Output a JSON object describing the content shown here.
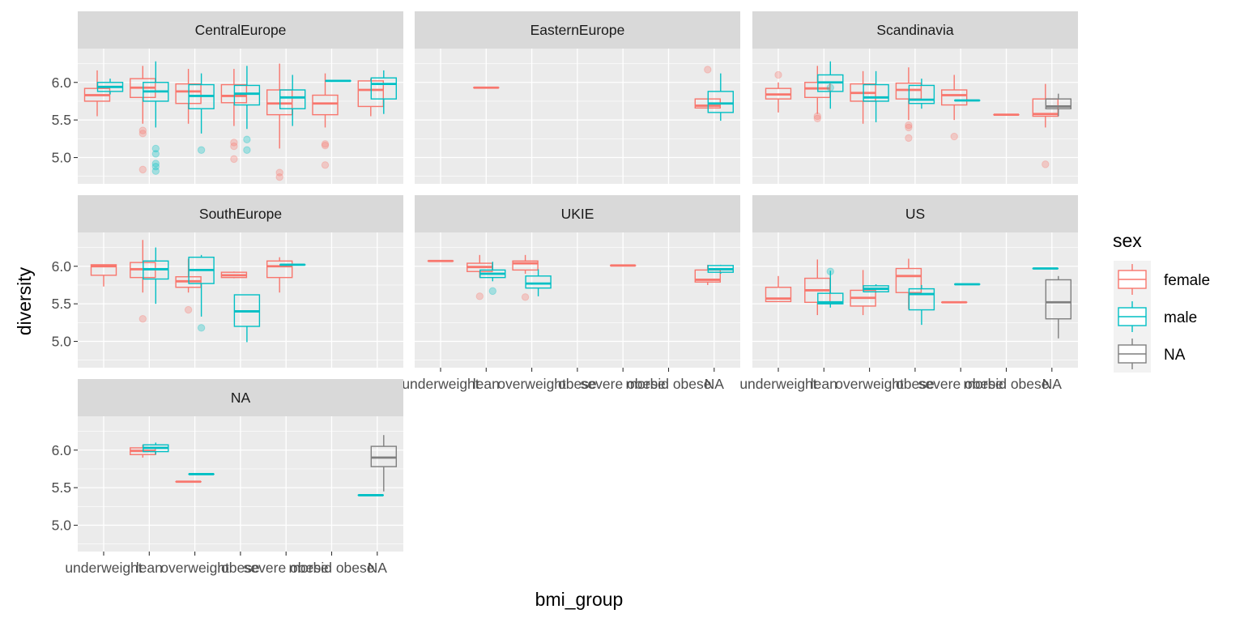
{
  "chart_data": {
    "type": "boxplot",
    "facet_by": "region",
    "xlabel": "bmi_group",
    "ylabel": "diversity",
    "categories": [
      "underweight",
      "lean",
      "overweight",
      "obese",
      "severe obese",
      "morbid obese",
      "NA"
    ],
    "y_ticks": [
      5.0,
      5.5,
      6.0
    ],
    "ylim": [
      4.65,
      6.45
    ],
    "grid": true,
    "legend": {
      "title": "sex",
      "position": "right",
      "entries": [
        {
          "name": "female",
          "color": "#F8766D"
        },
        {
          "name": "male",
          "color": "#00BFC4"
        },
        {
          "name": "NA",
          "color": "#7F7F7F"
        }
      ]
    },
    "facets": [
      {
        "name": "CentralEurope",
        "boxes": [
          {
            "cat": 0,
            "sex": "female",
            "lo": 5.55,
            "q1": 5.75,
            "med": 5.83,
            "q3": 5.92,
            "hi": 6.16,
            "out": []
          },
          {
            "cat": 0,
            "sex": "male",
            "lo": 5.84,
            "q1": 5.88,
            "med": 5.94,
            "q3": 6.0,
            "hi": 6.05,
            "out": []
          },
          {
            "cat": 1,
            "sex": "female",
            "lo": 5.45,
            "q1": 5.8,
            "med": 5.93,
            "q3": 6.05,
            "hi": 6.22,
            "out": [
              5.36,
              5.32,
              4.84
            ]
          },
          {
            "cat": 1,
            "sex": "male",
            "lo": 5.4,
            "q1": 5.75,
            "med": 5.88,
            "q3": 6.0,
            "hi": 6.28,
            "out": [
              5.12,
              5.05,
              4.92,
              4.88,
              4.82
            ]
          },
          {
            "cat": 2,
            "sex": "female",
            "lo": 5.45,
            "q1": 5.72,
            "med": 5.88,
            "q3": 5.98,
            "hi": 6.18,
            "out": []
          },
          {
            "cat": 2,
            "sex": "male",
            "lo": 5.32,
            "q1": 5.65,
            "med": 5.82,
            "q3": 5.97,
            "hi": 6.12,
            "out": [
              5.1
            ]
          },
          {
            "cat": 3,
            "sex": "female",
            "lo": 5.42,
            "q1": 5.73,
            "med": 5.82,
            "q3": 5.97,
            "hi": 6.18,
            "out": [
              5.2,
              5.15,
              4.98
            ]
          },
          {
            "cat": 3,
            "sex": "male",
            "lo": 5.38,
            "q1": 5.7,
            "med": 5.85,
            "q3": 5.96,
            "hi": 6.22,
            "out": [
              5.24,
              5.1
            ]
          },
          {
            "cat": 4,
            "sex": "female",
            "lo": 5.12,
            "q1": 5.57,
            "med": 5.72,
            "q3": 5.9,
            "hi": 6.25,
            "out": [
              4.8,
              4.74
            ]
          },
          {
            "cat": 4,
            "sex": "male",
            "lo": 5.42,
            "q1": 5.65,
            "med": 5.8,
            "q3": 5.9,
            "hi": 6.1,
            "out": []
          },
          {
            "cat": 5,
            "sex": "female",
            "lo": 5.4,
            "q1": 5.57,
            "med": 5.72,
            "q3": 5.83,
            "hi": 6.12,
            "out": [
              5.18,
              5.16,
              4.9
            ]
          },
          {
            "cat": 5,
            "sex": "male",
            "lo": 6.02,
            "q1": 6.02,
            "med": 6.02,
            "q3": 6.02,
            "hi": 6.02,
            "out": []
          },
          {
            "cat": 6,
            "sex": "female",
            "lo": 5.55,
            "q1": 5.68,
            "med": 5.9,
            "q3": 6.02,
            "hi": 6.05,
            "out": []
          },
          {
            "cat": 6,
            "sex": "male",
            "lo": 5.58,
            "q1": 5.78,
            "med": 5.98,
            "q3": 6.06,
            "hi": 6.16,
            "out": []
          }
        ]
      },
      {
        "name": "EasternEurope",
        "boxes": [
          {
            "cat": 1,
            "sex": "female",
            "lo": 5.93,
            "q1": 5.93,
            "med": 5.93,
            "q3": 5.93,
            "hi": 5.93,
            "out": []
          },
          {
            "cat": 6,
            "sex": "female",
            "lo": 5.66,
            "q1": 5.66,
            "med": 5.69,
            "q3": 5.78,
            "hi": 5.78,
            "out": [
              6.17
            ]
          },
          {
            "cat": 6,
            "sex": "male",
            "lo": 5.49,
            "q1": 5.6,
            "med": 5.72,
            "q3": 5.88,
            "hi": 6.12,
            "out": []
          }
        ]
      },
      {
        "name": "Scandinavia",
        "boxes": [
          {
            "cat": 0,
            "sex": "female",
            "lo": 5.6,
            "q1": 5.78,
            "med": 5.84,
            "q3": 5.92,
            "hi": 6.0,
            "out": [
              6.1
            ]
          },
          {
            "cat": 1,
            "sex": "female",
            "lo": 5.58,
            "q1": 5.8,
            "med": 5.92,
            "q3": 6.0,
            "hi": 6.22,
            "out": [
              5.55,
              5.52
            ]
          },
          {
            "cat": 1,
            "sex": "male",
            "lo": 5.65,
            "q1": 5.88,
            "med": 6.0,
            "q3": 6.1,
            "hi": 6.28,
            "out": [
              5.93
            ]
          },
          {
            "cat": 2,
            "sex": "female",
            "lo": 5.45,
            "q1": 5.75,
            "med": 5.86,
            "q3": 5.98,
            "hi": 6.15,
            "out": []
          },
          {
            "cat": 2,
            "sex": "male",
            "lo": 5.47,
            "q1": 5.75,
            "med": 5.8,
            "q3": 5.97,
            "hi": 6.15,
            "out": []
          },
          {
            "cat": 3,
            "sex": "female",
            "lo": 5.5,
            "q1": 5.78,
            "med": 5.9,
            "q3": 5.99,
            "hi": 6.2,
            "out": [
              5.43,
              5.4,
              5.26
            ]
          },
          {
            "cat": 3,
            "sex": "male",
            "lo": 5.65,
            "q1": 5.72,
            "med": 5.77,
            "q3": 5.96,
            "hi": 6.05,
            "out": []
          },
          {
            "cat": 4,
            "sex": "female",
            "lo": 5.5,
            "q1": 5.7,
            "med": 5.83,
            "q3": 5.9,
            "hi": 6.1,
            "out": [
              5.28
            ]
          },
          {
            "cat": 4,
            "sex": "male",
            "lo": 5.76,
            "q1": 5.76,
            "med": 5.76,
            "q3": 5.76,
            "hi": 5.76,
            "out": []
          },
          {
            "cat": 5,
            "sex": "female",
            "lo": 5.57,
            "q1": 5.57,
            "med": 5.57,
            "q3": 5.57,
            "hi": 5.57,
            "out": []
          },
          {
            "cat": 6,
            "sex": "female",
            "lo": 5.4,
            "q1": 5.55,
            "med": 5.58,
            "q3": 5.78,
            "hi": 5.98,
            "out": [
              4.91
            ]
          },
          {
            "cat": 6,
            "sex": "NA",
            "lo": 5.55,
            "q1": 5.65,
            "med": 5.68,
            "q3": 5.78,
            "hi": 5.85,
            "out": []
          }
        ]
      },
      {
        "name": "SouthEurope",
        "boxes": [
          {
            "cat": 0,
            "sex": "female",
            "lo": 5.73,
            "q1": 5.88,
            "med": 6.0,
            "q3": 6.02,
            "hi": 6.02,
            "out": []
          },
          {
            "cat": 1,
            "sex": "female",
            "lo": 5.65,
            "q1": 5.85,
            "med": 5.96,
            "q3": 6.05,
            "hi": 6.35,
            "out": [
              5.3
            ]
          },
          {
            "cat": 1,
            "sex": "male",
            "lo": 5.5,
            "q1": 5.83,
            "med": 5.96,
            "q3": 6.07,
            "hi": 6.25,
            "out": []
          },
          {
            "cat": 2,
            "sex": "female",
            "lo": 5.65,
            "q1": 5.72,
            "med": 5.8,
            "q3": 5.86,
            "hi": 6.1,
            "out": [
              5.42
            ]
          },
          {
            "cat": 2,
            "sex": "male",
            "lo": 5.33,
            "q1": 5.77,
            "med": 5.95,
            "q3": 6.12,
            "hi": 6.15,
            "out": [
              5.18
            ]
          },
          {
            "cat": 3,
            "sex": "female",
            "lo": 5.84,
            "q1": 5.85,
            "med": 5.88,
            "q3": 5.92,
            "hi": 5.93,
            "out": []
          },
          {
            "cat": 3,
            "sex": "male",
            "lo": 4.99,
            "q1": 5.2,
            "med": 5.4,
            "q3": 5.62,
            "hi": 5.62,
            "out": []
          },
          {
            "cat": 4,
            "sex": "female",
            "lo": 5.65,
            "q1": 5.85,
            "med": 6.0,
            "q3": 6.07,
            "hi": 6.12,
            "out": []
          },
          {
            "cat": 4,
            "sex": "male",
            "lo": 6.02,
            "q1": 6.02,
            "med": 6.02,
            "q3": 6.02,
            "hi": 6.02,
            "out": []
          }
        ]
      },
      {
        "name": "UKIE",
        "boxes": [
          {
            "cat": 0,
            "sex": "female",
            "lo": 6.07,
            "q1": 6.07,
            "med": 6.07,
            "q3": 6.07,
            "hi": 6.07,
            "out": []
          },
          {
            "cat": 1,
            "sex": "female",
            "lo": 5.85,
            "q1": 5.93,
            "med": 5.99,
            "q3": 6.04,
            "hi": 6.15,
            "out": [
              5.6
            ]
          },
          {
            "cat": 1,
            "sex": "male",
            "lo": 5.8,
            "q1": 5.85,
            "med": 5.9,
            "q3": 5.95,
            "hi": 6.06,
            "out": [
              5.67
            ]
          },
          {
            "cat": 2,
            "sex": "female",
            "lo": 5.9,
            "q1": 5.95,
            "med": 6.04,
            "q3": 6.07,
            "hi": 6.15,
            "out": [
              5.59
            ]
          },
          {
            "cat": 2,
            "sex": "male",
            "lo": 5.6,
            "q1": 5.71,
            "med": 5.77,
            "q3": 5.87,
            "hi": 5.96,
            "out": []
          },
          {
            "cat": 4,
            "sex": "female",
            "lo": 6.01,
            "q1": 6.01,
            "med": 6.01,
            "q3": 6.01,
            "hi": 6.01,
            "out": []
          },
          {
            "cat": 6,
            "sex": "female",
            "lo": 5.75,
            "q1": 5.79,
            "med": 5.82,
            "q3": 5.95,
            "hi": 6.02,
            "out": []
          },
          {
            "cat": 6,
            "sex": "male",
            "lo": 5.9,
            "q1": 5.92,
            "med": 5.96,
            "q3": 6.01,
            "hi": 6.02,
            "out": []
          }
        ]
      },
      {
        "name": "US",
        "boxes": [
          {
            "cat": 0,
            "sex": "female",
            "lo": 5.53,
            "q1": 5.53,
            "med": 5.57,
            "q3": 5.72,
            "hi": 5.87,
            "out": []
          },
          {
            "cat": 1,
            "sex": "female",
            "lo": 5.35,
            "q1": 5.52,
            "med": 5.68,
            "q3": 5.84,
            "hi": 6.09,
            "out": []
          },
          {
            "cat": 1,
            "sex": "male",
            "lo": 5.45,
            "q1": 5.5,
            "med": 5.52,
            "q3": 5.64,
            "hi": 5.94,
            "out": [
              5.93
            ]
          },
          {
            "cat": 2,
            "sex": "female",
            "lo": 5.35,
            "q1": 5.47,
            "med": 5.58,
            "q3": 5.68,
            "hi": 5.95,
            "out": []
          },
          {
            "cat": 2,
            "sex": "male",
            "lo": 5.65,
            "q1": 5.66,
            "med": 5.7,
            "q3": 5.74,
            "hi": 5.76,
            "out": []
          },
          {
            "cat": 3,
            "sex": "female",
            "lo": 5.43,
            "q1": 5.65,
            "med": 5.87,
            "q3": 5.97,
            "hi": 6.1,
            "out": []
          },
          {
            "cat": 3,
            "sex": "male",
            "lo": 5.22,
            "q1": 5.42,
            "med": 5.63,
            "q3": 5.7,
            "hi": 5.75,
            "out": []
          },
          {
            "cat": 4,
            "sex": "female",
            "lo": 5.52,
            "q1": 5.52,
            "med": 5.52,
            "q3": 5.52,
            "hi": 5.52,
            "out": []
          },
          {
            "cat": 4,
            "sex": "male",
            "lo": 5.76,
            "q1": 5.76,
            "med": 5.76,
            "q3": 5.76,
            "hi": 5.76,
            "out": []
          },
          {
            "cat": 6,
            "sex": "male",
            "lo": 5.97,
            "q1": 5.97,
            "med": 5.97,
            "q3": 5.97,
            "hi": 5.97,
            "out": []
          },
          {
            "cat": 6,
            "sex": "NA",
            "lo": 5.04,
            "q1": 5.3,
            "med": 5.52,
            "q3": 5.82,
            "hi": 5.87,
            "out": []
          }
        ]
      },
      {
        "name": "NA",
        "boxes": [
          {
            "cat": 1,
            "sex": "female",
            "lo": 5.9,
            "q1": 5.94,
            "med": 5.99,
            "q3": 6.03,
            "hi": 6.07,
            "out": []
          },
          {
            "cat": 1,
            "sex": "male",
            "lo": 5.94,
            "q1": 5.98,
            "med": 6.03,
            "q3": 6.07,
            "hi": 6.1,
            "out": []
          },
          {
            "cat": 2,
            "sex": "female",
            "lo": 5.58,
            "q1": 5.58,
            "med": 5.58,
            "q3": 5.58,
            "hi": 5.58,
            "out": []
          },
          {
            "cat": 2,
            "sex": "male",
            "lo": 5.68,
            "q1": 5.68,
            "med": 5.68,
            "q3": 5.68,
            "hi": 5.68,
            "out": []
          },
          {
            "cat": 6,
            "sex": "male",
            "lo": 5.4,
            "q1": 5.4,
            "med": 5.4,
            "q3": 5.4,
            "hi": 5.4,
            "out": []
          },
          {
            "cat": 6,
            "sex": "NA",
            "lo": 5.45,
            "q1": 5.78,
            "med": 5.9,
            "q3": 6.05,
            "hi": 6.2,
            "out": []
          }
        ]
      }
    ]
  }
}
